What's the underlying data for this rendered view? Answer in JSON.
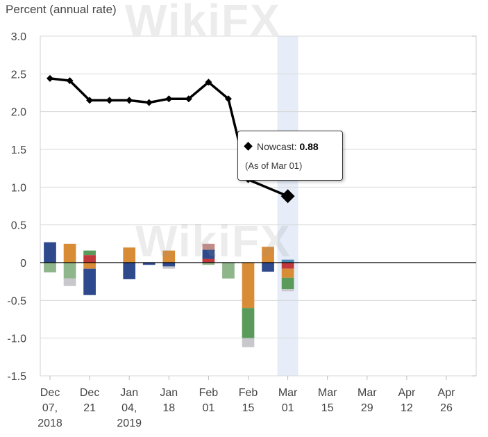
{
  "chart_data": {
    "type": "bar",
    "title": "",
    "ylabel": "Percent (annual rate)",
    "xlabel": "",
    "ylim": [
      -1.5,
      3.0
    ],
    "yticks": [
      3.0,
      2.5,
      2.0,
      1.5,
      1.0,
      0.5,
      0,
      -0.5,
      -1.0,
      -1.5
    ],
    "ytick_labels": [
      "3.0",
      "2.5",
      "2.0",
      "1.5",
      "1.0",
      "0.5",
      "0",
      "-0.5",
      "-1.0",
      "-1.5"
    ],
    "x_ticks": [
      {
        "x": "2018-12-07",
        "lines": [
          "Dec",
          "07,",
          "2018"
        ]
      },
      {
        "x": "2018-12-21",
        "lines": [
          "Dec",
          "21"
        ]
      },
      {
        "x": "2019-01-04",
        "lines": [
          "Jan",
          "04,",
          "2019"
        ]
      },
      {
        "x": "2019-01-18",
        "lines": [
          "Jan",
          "18"
        ]
      },
      {
        "x": "2019-02-01",
        "lines": [
          "Feb",
          "01"
        ]
      },
      {
        "x": "2019-02-15",
        "lines": [
          "Feb",
          "15"
        ]
      },
      {
        "x": "2019-03-01",
        "lines": [
          "Mar",
          "01"
        ]
      },
      {
        "x": "2019-03-15",
        "lines": [
          "Mar",
          "15"
        ]
      },
      {
        "x": "2019-03-29",
        "lines": [
          "Mar",
          "29"
        ]
      },
      {
        "x": "2019-04-12",
        "lines": [
          "Apr",
          "12"
        ]
      },
      {
        "x": "2019-04-26",
        "lines": [
          "Apr",
          "26"
        ]
      }
    ],
    "highlight_x": "2019-03-01",
    "grid": true,
    "nowcast_line": {
      "type": "line",
      "color": "#000000",
      "marker": "diamond",
      "points": [
        {
          "x": "2018-12-07",
          "y": 2.44
        },
        {
          "x": "2018-12-14",
          "y": 2.41
        },
        {
          "x": "2018-12-21",
          "y": 2.15
        },
        {
          "x": "2018-12-28",
          "y": 2.15
        },
        {
          "x": "2019-01-04",
          "y": 2.15
        },
        {
          "x": "2019-01-11",
          "y": 2.12
        },
        {
          "x": "2019-01-18",
          "y": 2.17
        },
        {
          "x": "2019-01-25",
          "y": 2.17
        },
        {
          "x": "2019-02-01",
          "y": 2.39
        },
        {
          "x": "2019-02-08",
          "y": 2.17
        },
        {
          "x": "2019-02-15",
          "y": 1.1
        },
        {
          "x": "2019-03-01",
          "y": 0.88
        }
      ]
    },
    "bars": [
      {
        "x": "2018-12-07",
        "segments": [
          {
            "value": 0.27,
            "color": "#2e4a8c"
          },
          {
            "value": -0.13,
            "color": "#8fb58a"
          }
        ]
      },
      {
        "x": "2018-12-14",
        "segments": [
          {
            "value": 0.25,
            "color": "#d98c36"
          },
          {
            "value": -0.21,
            "color": "#8fb58a"
          },
          {
            "value": -0.1,
            "color": "#c8c8cc"
          }
        ]
      },
      {
        "x": "2018-12-21",
        "segments": [
          {
            "value": 0.1,
            "color": "#c0383a"
          },
          {
            "value": 0.06,
            "color": "#5a9a5a"
          },
          {
            "value": -0.08,
            "color": "#d98c36"
          },
          {
            "value": -0.35,
            "color": "#2e4a8c"
          }
        ]
      },
      {
        "x": "2019-01-04",
        "segments": [
          {
            "value": 0.2,
            "color": "#d98c36"
          },
          {
            "value": -0.22,
            "color": "#2e4a8c"
          }
        ]
      },
      {
        "x": "2019-01-11",
        "segments": [
          {
            "value": -0.03,
            "color": "#2e4a8c"
          }
        ]
      },
      {
        "x": "2019-01-18",
        "segments": [
          {
            "value": 0.16,
            "color": "#d98c36"
          },
          {
            "value": -0.05,
            "color": "#2e4a8c"
          },
          {
            "value": -0.03,
            "color": "#c8c8cc"
          }
        ]
      },
      {
        "x": "2019-02-01",
        "segments": [
          {
            "value": 0.05,
            "color": "#c0383a"
          },
          {
            "value": 0.12,
            "color": "#2e4a8c"
          },
          {
            "value": 0.08,
            "color": "#c48b86"
          },
          {
            "value": -0.03,
            "color": "#8fb58a"
          }
        ]
      },
      {
        "x": "2019-02-08",
        "segments": [
          {
            "value": -0.21,
            "color": "#8fb58a"
          }
        ]
      },
      {
        "x": "2019-02-15",
        "segments": [
          {
            "value": -0.6,
            "color": "#d98c36"
          },
          {
            "value": -0.4,
            "color": "#5a9a5a"
          },
          {
            "value": -0.12,
            "color": "#c8c8cc"
          }
        ]
      },
      {
        "x": "2019-02-22",
        "segments": [
          {
            "value": 0.21,
            "color": "#d98c36"
          },
          {
            "value": -0.12,
            "color": "#2e4a8c"
          }
        ]
      },
      {
        "x": "2019-03-01",
        "segments": [
          {
            "value": 0.04,
            "color": "#4a8ab5"
          },
          {
            "value": -0.08,
            "color": "#c0383a"
          },
          {
            "value": -0.12,
            "color": "#d98c36"
          },
          {
            "value": -0.15,
            "color": "#5a9a5a"
          },
          {
            "value": -0.03,
            "color": "#c8c8cc"
          }
        ]
      }
    ],
    "tooltip": {
      "label": "Nowcast:",
      "value": "0.88",
      "asof": "(As of Mar 01)"
    },
    "colors": {
      "line": "#000000",
      "grid": "#d9d9d9",
      "highlight": "#e6edf8",
      "axis": "#555555"
    }
  }
}
